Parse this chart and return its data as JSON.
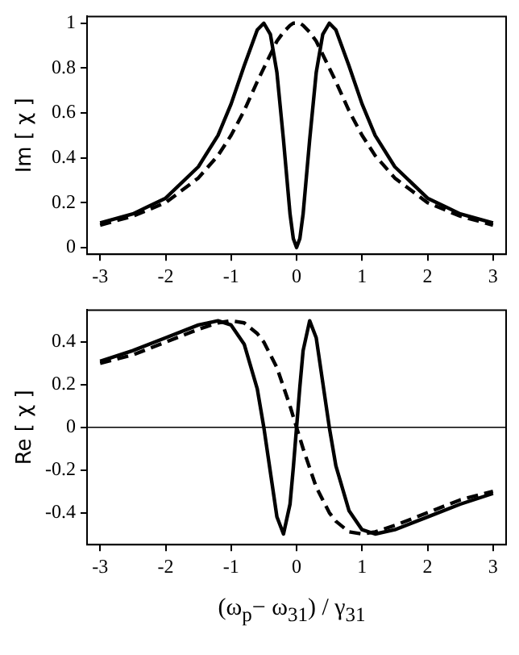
{
  "chart_data": [
    {
      "type": "line",
      "ylabel": "Im [ χ ]",
      "x": [
        -3,
        -2.5,
        -2,
        -1.5,
        -1.2,
        -1,
        -0.8,
        -0.6,
        -0.5,
        -0.4,
        -0.3,
        -0.2,
        -0.1,
        -0.05,
        0,
        0.05,
        0.1,
        0.2,
        0.3,
        0.4,
        0.5,
        0.6,
        0.8,
        1,
        1.2,
        1.5,
        2,
        2.5,
        3
      ],
      "series": [
        {
          "color": "#000000",
          "line_style": "solid",
          "values": [
            0.11,
            0.15,
            0.22,
            0.36,
            0.5,
            0.64,
            0.81,
            0.97,
            1,
            0.95,
            0.78,
            0.48,
            0.15,
            0.04,
            0,
            0.04,
            0.15,
            0.48,
            0.78,
            0.95,
            1,
            0.97,
            0.81,
            0.64,
            0.5,
            0.36,
            0.22,
            0.15,
            0.11
          ]
        },
        {
          "color": "#000000",
          "line_style": "dashed",
          "values": [
            0.1,
            0.14,
            0.2,
            0.31,
            0.41,
            0.5,
            0.61,
            0.74,
            0.8,
            0.86,
            0.92,
            0.96,
            0.99,
            1,
            1,
            1,
            0.99,
            0.96,
            0.92,
            0.86,
            0.8,
            0.74,
            0.61,
            0.5,
            0.41,
            0.31,
            0.2,
            0.14,
            0.1
          ]
        }
      ],
      "xlim": [
        -3.2,
        3.2
      ],
      "xticks": [
        -3,
        -2,
        -1,
        0,
        1,
        2,
        3
      ],
      "ylim": [
        -0.03,
        1.03
      ],
      "yticks": [
        0,
        0.2,
        0.4,
        0.6,
        0.8,
        1
      ],
      "grid": false,
      "legend": false,
      "marker": "none"
    },
    {
      "type": "line",
      "ylabel": "Re [ χ ]",
      "xlabel": "(ω$_{p}$− ω$_{31}$) / γ$_{31}$",
      "x": [
        -3,
        -2.5,
        -2,
        -1.5,
        -1.2,
        -1,
        -0.8,
        -0.6,
        -0.5,
        -0.4,
        -0.3,
        -0.2,
        -0.1,
        -0.05,
        0,
        0.05,
        0.1,
        0.2,
        0.3,
        0.4,
        0.5,
        0.6,
        0.8,
        1,
        1.2,
        1.5,
        2,
        2.5,
        3
      ],
      "series": [
        {
          "color": "#000000",
          "line_style": "solid",
          "values": [
            0.31,
            0.36,
            0.42,
            0.48,
            0.5,
            0.48,
            0.39,
            0.18,
            0,
            -0.21,
            -0.42,
            -0.5,
            -0.36,
            -0.19,
            0,
            0.19,
            0.36,
            0.5,
            0.42,
            0.21,
            0,
            -0.18,
            -0.39,
            -0.48,
            -0.5,
            -0.48,
            -0.42,
            -0.36,
            -0.31
          ]
        },
        {
          "color": "#000000",
          "line_style": "dashed",
          "values": [
            0.3,
            0.34,
            0.4,
            0.46,
            0.49,
            0.5,
            0.49,
            0.44,
            0.4,
            0.34,
            0.28,
            0.19,
            0.1,
            0.05,
            0,
            -0.05,
            -0.1,
            -0.19,
            -0.28,
            -0.34,
            -0.4,
            -0.44,
            -0.49,
            -0.5,
            -0.49,
            -0.46,
            -0.4,
            -0.34,
            -0.3
          ]
        }
      ],
      "xlim": [
        -3.2,
        3.2
      ],
      "xticks": [
        -3,
        -2,
        -1,
        0,
        1,
        2,
        3
      ],
      "ylim": [
        -0.55,
        0.55
      ],
      "yticks": [
        -0.4,
        -0.2,
        0,
        0.2,
        0.4
      ],
      "grid": false,
      "legend": false,
      "marker": "none",
      "ref_lines": [
        {
          "axis": "y",
          "value": 0,
          "color": "#000000"
        }
      ]
    }
  ]
}
